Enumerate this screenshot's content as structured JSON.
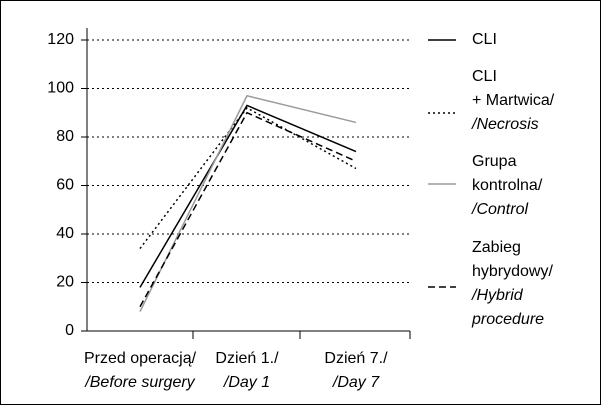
{
  "chart_data": {
    "type": "line",
    "categories": [
      "Przed operacją/\n/Before surgery",
      "Dzień 1./\n/Day 1",
      "Dzień 7./\n/Day 7"
    ],
    "series": [
      {
        "name": "CLI",
        "color": "#000000",
        "dash": "solid",
        "values": [
          18,
          93,
          74
        ]
      },
      {
        "name": "CLI\n+ Martwica/\n/Necrosis",
        "color": "#000000",
        "dash": "dotted",
        "values": [
          34,
          92,
          67
        ]
      },
      {
        "name": "Grupa\nkontrolna/\n/Control",
        "color": "#9a9a9a",
        "dash": "solid",
        "values": [
          8,
          97,
          86
        ]
      },
      {
        "name": "Zabieg\nhybrydowy/\n/Hybrid\nprocedure",
        "color": "#000000",
        "dash": "dashed",
        "values": [
          10,
          90,
          70
        ]
      }
    ],
    "ylim": [
      0,
      120
    ],
    "yticks": [
      0,
      20,
      40,
      60,
      80,
      100,
      120
    ],
    "grid": true
  }
}
